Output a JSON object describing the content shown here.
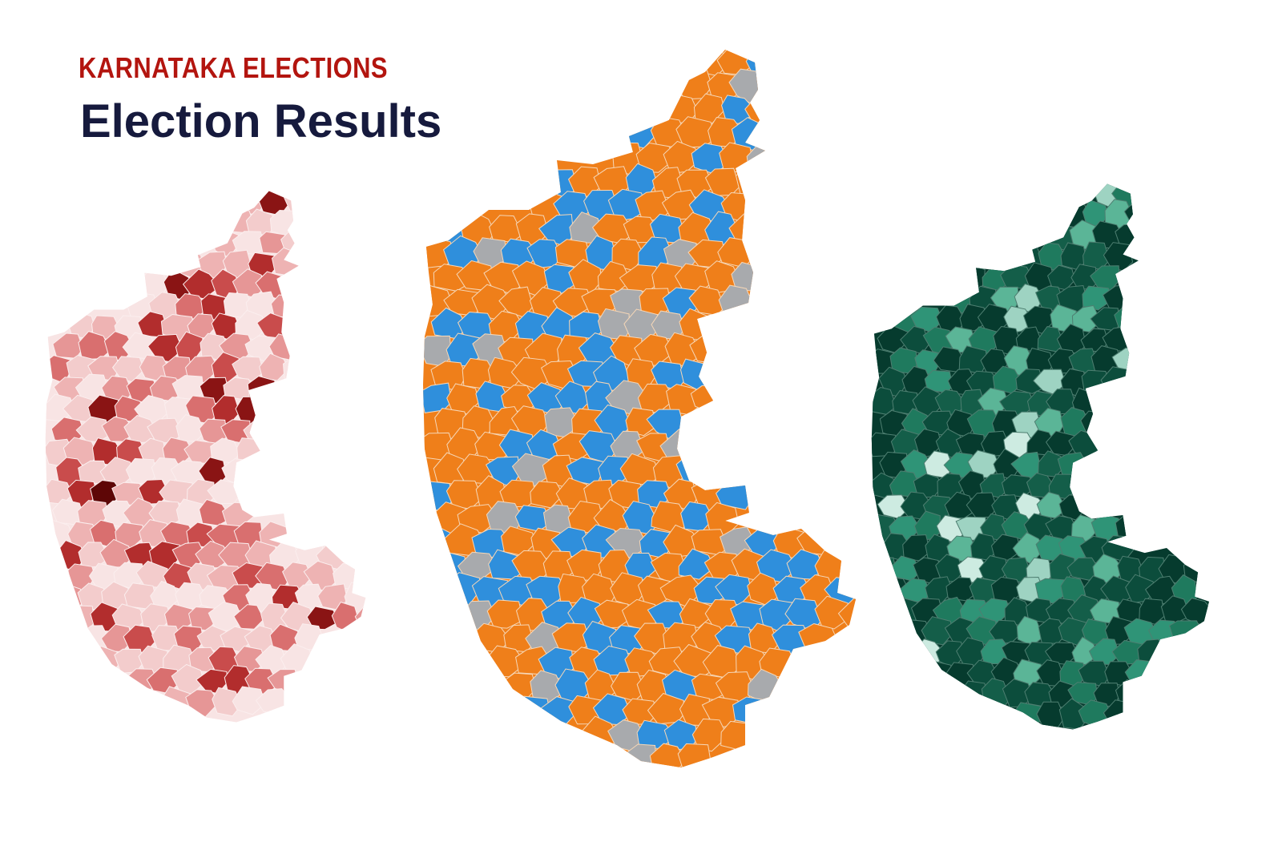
{
  "header": {
    "kicker": "KARNATAKA ELECTIONS",
    "title": "Election Results"
  },
  "colors": {
    "kicker": "#b3150f",
    "title": "#161a3d",
    "background": "#ffffff"
  },
  "maps": [
    {
      "id": "left",
      "palette": [
        "#f8e4e4",
        "#f3cccc",
        "#eeb3b3",
        "#e69696",
        "#d96f6f",
        "#c94c4c",
        "#b22d2d",
        "#8a1414",
        "#5e0606"
      ],
      "weights": [
        18,
        16,
        13,
        10,
        8,
        6,
        5,
        3,
        2
      ],
      "stroke": "#fbeeee"
    },
    {
      "id": "center",
      "palette": [
        "#ef7f1a",
        "#2f8fdc",
        "#a8aaad"
      ],
      "weights": [
        55,
        32,
        13
      ],
      "stroke": "#f6d7b7"
    },
    {
      "id": "right",
      "palette": [
        "#063b2e",
        "#0c4d3c",
        "#145e49",
        "#1f7a5e",
        "#2f9477",
        "#5bb597",
        "#9ed3c2",
        "#cdebe1"
      ],
      "weights": [
        30,
        24,
        14,
        10,
        8,
        6,
        4,
        2
      ],
      "stroke": "#4e7f71"
    }
  ]
}
